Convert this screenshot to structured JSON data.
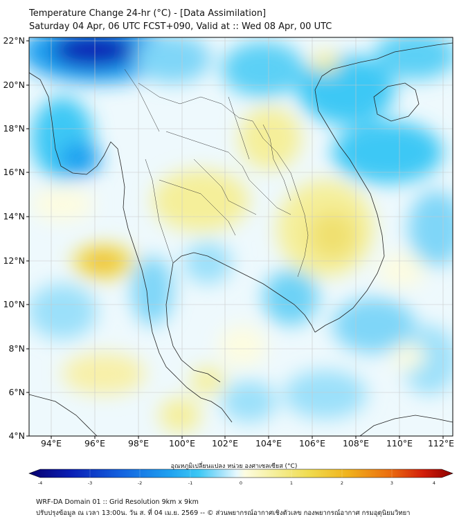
{
  "header": {
    "title_line1": "Temperature Change 24-hr (°C) - [Data Assimilation]",
    "title_line2": "Saturday 04 Apr, 06 UTC FCST+090, Valid at :: Wed 08 Apr, 00 UTC"
  },
  "map": {
    "lat_labels": [
      "22°N",
      "20°N",
      "18°N",
      "16°N",
      "14°N",
      "12°N",
      "10°N",
      "8°N",
      "6°N",
      "4°N"
    ],
    "lon_labels": [
      "94°E",
      "96°E",
      "98°E",
      "100°E",
      "102°E",
      "104°E",
      "106°E",
      "108°E",
      "110°E",
      "112°E"
    ],
    "lat_range": [
      4,
      22
    ],
    "lon_range": [
      93,
      112.5
    ],
    "gridlines": true
  },
  "colorbar": {
    "title": "อุณหภูมิเปลี่ยนแปลง หน่วย องศาเซลเซียส (°C)",
    "ticks": [
      "-4",
      "-3",
      "-2",
      "-1",
      "0",
      "1",
      "2",
      "3",
      "4"
    ],
    "range": [
      -4,
      4
    ],
    "colors": [
      "#08006e",
      "#0a1fb5",
      "#1464e0",
      "#1ea0f0",
      "#3cc8f5",
      "#9be0fa",
      "#e6f8fe",
      "#ffffff",
      "#fdfce0",
      "#f5ef9a",
      "#f0dc50",
      "#f0b41e",
      "#eb6e0f",
      "#d21e0a",
      "#8c0000"
    ]
  },
  "footer": {
    "line1": "WRF-DA Domain 01 :: Grid Resolution 9km x 9km",
    "line2": "ปรับปรุงข้อมูล ณ เวลา 13:00น. วัน ส. ที่ 04 เม.ย. 2569 -- © ส่วนพยากรณ์อากาศเชิงตัวเลข กองพยากรณ์อากาศ กรมอุตุนิยมวิทยา"
  }
}
